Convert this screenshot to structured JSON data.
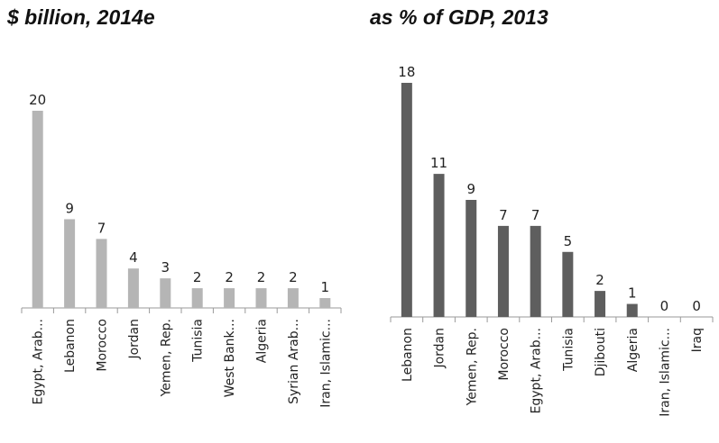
{
  "chart_data": [
    {
      "type": "bar",
      "title": "$ billion, 2014e",
      "categories": [
        "Egypt, Arab...",
        "Lebanon",
        "Morocco",
        "Jordan",
        "Yemen, Rep.",
        "Tunisia",
        "West Bank...",
        "Algeria",
        "Syrian Arab...",
        "Iran, Islamic..."
      ],
      "values": [
        20,
        9,
        7,
        4,
        3,
        2,
        2,
        2,
        2,
        1
      ],
      "value_labels": [
        "20",
        "9",
        "7",
        "4",
        "3",
        "2",
        "2",
        "2",
        "2",
        "1"
      ],
      "ylim": [
        0,
        20
      ],
      "grid": false,
      "legend": "none",
      "bar_color": "#b5b5b5"
    },
    {
      "type": "bar",
      "title": "as % of GDP, 2013",
      "categories": [
        "Lebanon",
        "Jordan",
        "Yemen, Rep.",
        "Morocco",
        "Egypt, Arab...",
        "Tunisia",
        "Djibouti",
        "Algeria",
        "Iran, Islamic...",
        "Iraq"
      ],
      "values": [
        18,
        11,
        9,
        7,
        7,
        5,
        2,
        1,
        0,
        0
      ],
      "value_labels": [
        "18",
        "11",
        "9",
        "7",
        "7",
        "5",
        "2",
        "1",
        "0",
        "0"
      ],
      "ylim": [
        0,
        18
      ],
      "grid": false,
      "legend": "none",
      "bar_color": "#5e5e5e"
    }
  ]
}
